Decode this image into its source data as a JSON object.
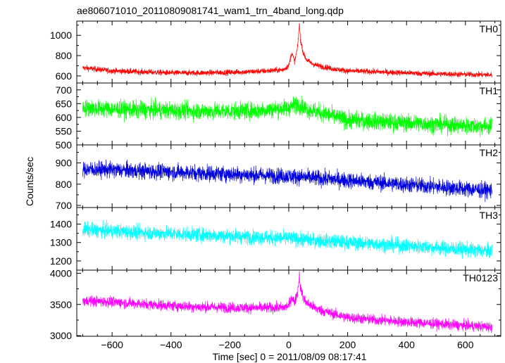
{
  "chart_data": {
    "type": "line",
    "title": "ae806071010_20110809081741_wam1_trn_4band_long.qdp",
    "xlabel": "Time [sec] 0 = 2011/08/09 08:17:41",
    "ylabel": "Counts/sec",
    "xlim": [
      -720,
      720
    ],
    "x_ticks": [
      -600,
      -400,
      -200,
      0,
      200,
      400,
      600
    ],
    "grid": false,
    "panels": [
      {
        "name": "TH0",
        "color": "#ff0000",
        "ylim": [
          530,
          1140
        ],
        "y_ticks": [
          600,
          800,
          1000
        ],
        "series": {
          "x": [
            -700,
            -600,
            -500,
            -400,
            -300,
            -200,
            -100,
            -20,
            0,
            10,
            20,
            30,
            36,
            40,
            50,
            60,
            80,
            100,
            150,
            200,
            300,
            400,
            500,
            600,
            690
          ],
          "values": [
            680,
            650,
            640,
            630,
            630,
            635,
            645,
            660,
            700,
            830,
            740,
            880,
            1110,
            950,
            820,
            760,
            720,
            700,
            670,
            650,
            640,
            630,
            620,
            615,
            610
          ]
        }
      },
      {
        "name": "TH1",
        "color": "#00ff00",
        "ylim": [
          500,
          725
        ],
        "y_ticks": [
          500,
          550,
          600,
          650,
          700
        ],
        "series": {
          "x": [
            -700,
            -600,
            -500,
            -400,
            -300,
            -200,
            -100,
            0,
            30,
            60,
            100,
            150,
            200,
            300,
            400,
            500,
            600,
            690
          ],
          "values": [
            635,
            630,
            628,
            625,
            623,
            622,
            625,
            635,
            650,
            630,
            620,
            605,
            590,
            585,
            580,
            575,
            570,
            568
          ]
        }
      },
      {
        "name": "TH2",
        "color": "#0000dd",
        "ylim": [
          690,
          985
        ],
        "y_ticks": [
          700,
          800,
          900
        ],
        "series": {
          "x": [
            -700,
            -600,
            -500,
            -400,
            -300,
            -200,
            -100,
            0,
            100,
            200,
            300,
            400,
            500,
            600,
            690
          ],
          "values": [
            870,
            868,
            862,
            858,
            852,
            848,
            842,
            838,
            828,
            818,
            808,
            798,
            788,
            778,
            770
          ]
        }
      },
      {
        "name": "TH3",
        "color": "#00ffff",
        "ylim": [
          1150,
          1490
        ],
        "y_ticks": [
          1200,
          1300,
          1400
        ],
        "series": {
          "x": [
            -700,
            -600,
            -500,
            -400,
            -300,
            -200,
            -100,
            0,
            100,
            200,
            300,
            400,
            500,
            600,
            690
          ],
          "values": [
            1370,
            1362,
            1355,
            1348,
            1342,
            1335,
            1328,
            1322,
            1312,
            1300,
            1292,
            1282,
            1272,
            1262,
            1252
          ]
        }
      },
      {
        "name": "TH0123",
        "color": "#ff00ff",
        "ylim": [
          2990,
          4050
        ],
        "y_ticks": [
          3000,
          3500,
          4000
        ],
        "series": {
          "x": [
            -700,
            -600,
            -500,
            -400,
            -300,
            -200,
            -100,
            -20,
            0,
            10,
            20,
            30,
            36,
            40,
            50,
            60,
            80,
            100,
            150,
            200,
            300,
            400,
            500,
            600,
            690
          ],
          "values": [
            3560,
            3540,
            3510,
            3480,
            3460,
            3450,
            3445,
            3450,
            3480,
            3620,
            3530,
            3700,
            3970,
            3760,
            3600,
            3530,
            3470,
            3420,
            3350,
            3290,
            3250,
            3220,
            3190,
            3160,
            3140
          ]
        }
      }
    ]
  }
}
